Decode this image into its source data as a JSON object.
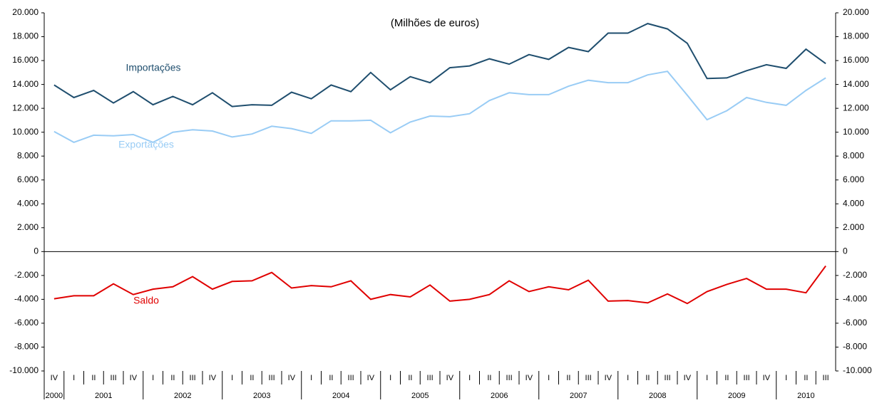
{
  "chart_data": {
    "type": "line",
    "title": "(Milhões de euros)",
    "categories": [
      "IV",
      "I",
      "II",
      "III",
      "IV",
      "I",
      "II",
      "III",
      "IV",
      "I",
      "II",
      "III",
      "IV",
      "I",
      "II",
      "III",
      "IV",
      "I",
      "II",
      "III",
      "IV",
      "I",
      "II",
      "III",
      "IV",
      "I",
      "II",
      "III",
      "IV",
      "I",
      "II",
      "III",
      "IV",
      "I",
      "II",
      "III",
      "IV",
      "I",
      "II",
      "III"
    ],
    "years": [
      "2000",
      "2001",
      "2002",
      "2003",
      "2004",
      "2005",
      "2006",
      "2007",
      "2008",
      "2009",
      "2010"
    ],
    "series": [
      {
        "name": "Importações",
        "color": "#1f4e6e",
        "values": [
          13950,
          12900,
          13500,
          12450,
          13400,
          12300,
          13000,
          12300,
          13300,
          12150,
          12300,
          12250,
          13350,
          12800,
          13950,
          13400,
          15000,
          13550,
          14650,
          14150,
          15400,
          15550,
          16150,
          15700,
          16500,
          16100,
          17100,
          16750,
          18300,
          18300,
          19100,
          18650,
          17450,
          14500,
          14550,
          15150,
          15650,
          15350,
          16950,
          15750
        ]
      },
      {
        "name": "Exportações",
        "color": "#99ccf5",
        "values": [
          10050,
          9150,
          9750,
          9700,
          9800,
          9150,
          10000,
          10200,
          10100,
          9600,
          9850,
          10500,
          10300,
          9900,
          10950,
          10950,
          11000,
          9950,
          10850,
          11350,
          11300,
          11550,
          12650,
          13300,
          13150,
          13150,
          13850,
          14350,
          14150,
          14150,
          14800,
          15100,
          13100,
          11050,
          11800,
          12900,
          12500,
          12250,
          13500,
          14550
        ]
      },
      {
        "name": "Saldo",
        "color": "#e00000",
        "values": [
          -3950,
          -3700,
          -3700,
          -2700,
          -3600,
          -3150,
          -2950,
          -2100,
          -3150,
          -2500,
          -2450,
          -1750,
          -3050,
          -2850,
          -2950,
          -2450,
          -4000,
          -3600,
          -3800,
          -2800,
          -4150,
          -4000,
          -3600,
          -2450,
          -3350,
          -2950,
          -3200,
          -2400,
          -4150,
          -4100,
          -4300,
          -3550,
          -4350,
          -3350,
          -2750,
          -2250,
          -3150,
          -3150,
          -3450,
          -1200
        ]
      }
    ],
    "ylim": [
      -10000,
      20000
    ],
    "yticks": [
      {
        "value": -10000,
        "label": "-10.000"
      },
      {
        "value": -8000,
        "label": "-8.000"
      },
      {
        "value": -6000,
        "label": "-6.000"
      },
      {
        "value": -4000,
        "label": "-4.000"
      },
      {
        "value": -2000,
        "label": "-2.000"
      },
      0,
      {
        "value": 2000,
        "label": "2.000"
      },
      {
        "value": 4000,
        "label": "4.000"
      },
      {
        "value": 6000,
        "label": "6.000"
      },
      {
        "value": 8000,
        "label": "8.000"
      },
      {
        "value": 10000,
        "label": "10.000"
      },
      {
        "value": 12000,
        "label": "12.000"
      },
      {
        "value": 14000,
        "label": "14.000"
      },
      {
        "value": 16000,
        "label": "16.000"
      },
      {
        "value": 18000,
        "label": "18.000"
      },
      {
        "value": 20000,
        "label": "20.000"
      }
    ],
    "grid": false
  }
}
